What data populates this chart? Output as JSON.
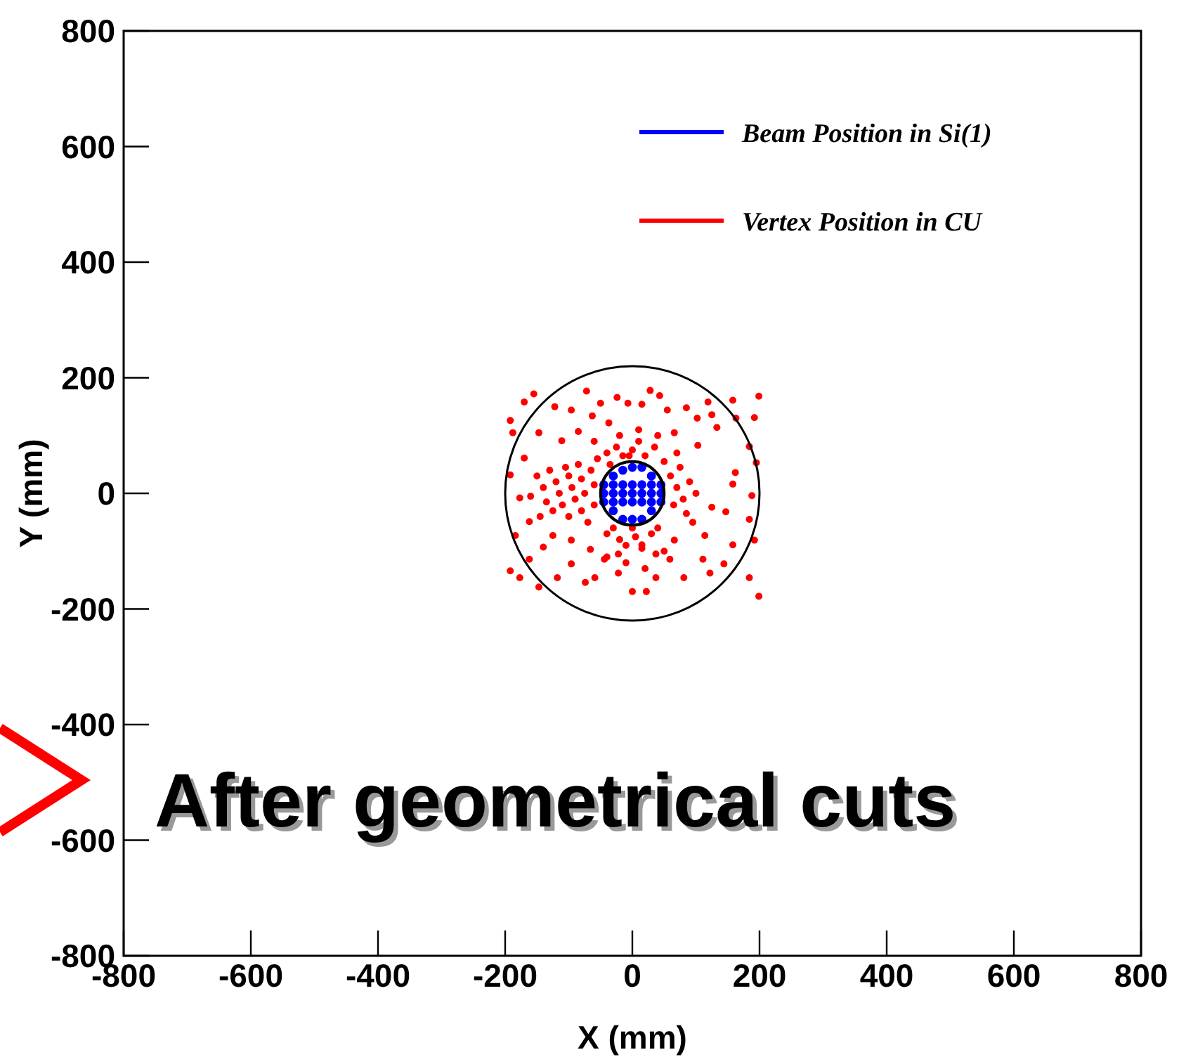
{
  "chart_data": {
    "type": "scatter",
    "xlabel": "X (mm)",
    "ylabel": "Y (mm)",
    "xlim": [
      -800,
      800
    ],
    "ylim": [
      -800,
      800
    ],
    "xticks": [
      -800,
      -600,
      -400,
      -200,
      0,
      200,
      400,
      600,
      800
    ],
    "yticks": [
      -800,
      -600,
      -400,
      -200,
      0,
      200,
      400,
      600,
      800
    ],
    "legend": "top right",
    "marker": "circle",
    "annotations": [
      "After geometrical cuts"
    ],
    "series": [
      {
        "name": "Vertex Position in CU",
        "color": "#ff0000",
        "x": [
          -155,
          -72,
          -24,
          28,
          43,
          85,
          119,
          158,
          199,
          192,
          163,
          125,
          102,
          55,
          15,
          -7,
          -50,
          -96,
          -122,
          -170,
          -192,
          -188,
          -147,
          -111,
          -85,
          -63,
          -37,
          66,
          103,
          133,
          184,
          162,
          195,
          158,
          188,
          125,
          147,
          184,
          114,
          158,
          192,
          111,
          144,
          184,
          199,
          122,
          81,
          59,
          37,
          22,
          0,
          -22,
          -44,
          -59,
          -74,
          -96,
          -118,
          -147,
          -177,
          -192,
          -162,
          -140,
          -184,
          -162,
          -177,
          -192,
          -170,
          -125,
          -96,
          -66,
          -22,
          15,
          37,
          66,
          -150,
          -140,
          -135,
          -130,
          -125,
          -120,
          -115,
          -110,
          -105,
          -100,
          -100,
          -95,
          -90,
          -85,
          -80,
          -80,
          -75,
          -70,
          -65,
          -60,
          -60,
          -55,
          -40,
          -40,
          -35,
          -30,
          -25,
          -20,
          -15,
          -10,
          0,
          5,
          10,
          15,
          20,
          30,
          35,
          40,
          50,
          60,
          65,
          70,
          75,
          80,
          85,
          90,
          100,
          -20,
          10,
          40,
          -60,
          -10,
          20,
          -40,
          50,
          0,
          -5,
          -160,
          -145,
          70,
          95
        ],
        "values": [
          172,
          177,
          166,
          178,
          169,
          148,
          158,
          161,
          168,
          131,
          130,
          136,
          130,
          144,
          154,
          156,
          156,
          144,
          150,
          158,
          126,
          105,
          105,
          91,
          107,
          134,
          122,
          105,
          83,
          114,
          81,
          36,
          53,
          16,
          -4,
          -24,
          -32,
          -45,
          -73,
          -89,
          -81,
          -114,
          -122,
          -146,
          -178,
          -138,
          -146,
          -114,
          -146,
          -170,
          -170,
          -138,
          -114,
          -146,
          -154,
          -122,
          -146,
          -162,
          -146,
          -134,
          -114,
          -93,
          -73,
          -49,
          -8,
          32,
          61,
          -73,
          -81,
          -97,
          -105,
          -89,
          -105,
          -81,
          30,
          10,
          -15,
          40,
          -30,
          20,
          0,
          -20,
          45,
          30,
          -40,
          10,
          -10,
          50,
          25,
          -30,
          0,
          -50,
          40,
          15,
          -20,
          60,
          70,
          -70,
          50,
          -60,
          80,
          -80,
          65,
          -90,
          75,
          -75,
          90,
          -95,
          65,
          -70,
          80,
          -60,
          55,
          30,
          -20,
          10,
          45,
          -10,
          -35,
          20,
          0,
          100,
          110,
          100,
          90,
          -120,
          -130,
          -110,
          -100,
          -60,
          65,
          -5,
          -40,
          70,
          -50
        ]
      },
      {
        "name": "Beam Position in Si(1)",
        "color": "#0000ff",
        "x": [
          -45,
          -45,
          -45,
          -30,
          -30,
          -30,
          -30,
          -30,
          -15,
          -15,
          -15,
          -15,
          -15,
          0,
          0,
          0,
          0,
          0,
          15,
          15,
          15,
          15,
          15,
          30,
          30,
          30,
          30,
          30,
          45,
          45,
          45
        ],
        "values": [
          -15,
          0,
          15,
          -30,
          -15,
          0,
          15,
          30,
          -45,
          -15,
          0,
          15,
          40,
          -45,
          -15,
          0,
          15,
          45,
          -45,
          -15,
          0,
          15,
          45,
          -30,
          -15,
          0,
          15,
          30,
          -15,
          0,
          15
        ]
      }
    ]
  }
}
